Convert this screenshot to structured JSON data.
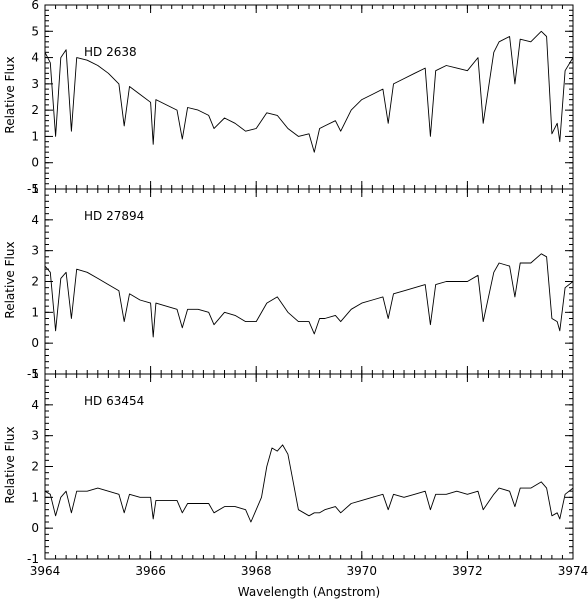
{
  "chart_data": {
    "type": "line",
    "xlabel": "Wavelength (Angstrom)",
    "xlim": [
      3964,
      3974
    ],
    "x_ticks": [
      3964,
      3966,
      3968,
      3970,
      3972,
      3974
    ],
    "panels": [
      {
        "label": "HD 2638",
        "ylabel": "Relative Flux",
        "ylim": [
          -1,
          6
        ],
        "y_ticks": [
          -1,
          0,
          1,
          2,
          3,
          4,
          5,
          6
        ],
        "series": [
          {
            "x": [
              3964.0,
              3964.1,
              3964.2,
              3964.3,
              3964.4,
              3964.5,
              3964.6,
              3964.8,
              3965.0,
              3965.2,
              3965.4,
              3965.5,
              3965.6,
              3965.8,
              3966.0,
              3966.05,
              3966.1,
              3966.3,
              3966.5,
              3966.6,
              3966.7,
              3966.9,
              3967.1,
              3967.2,
              3967.4,
              3967.6,
              3967.8,
              3968.0,
              3968.2,
              3968.4,
              3968.6,
              3968.8,
              3969.0,
              3969.1,
              3969.2,
              3969.3,
              3969.5,
              3969.6,
              3969.8,
              3970.0,
              3970.2,
              3970.4,
              3970.5,
              3970.6,
              3970.8,
              3971.0,
              3971.2,
              3971.3,
              3971.4,
              3971.6,
              3971.8,
              3972.0,
              3972.2,
              3972.3,
              3972.5,
              3972.6,
              3972.8,
              3972.9,
              3973.0,
              3973.2,
              3973.4,
              3973.5,
              3973.6,
              3973.7,
              3973.75,
              3973.85,
              3974.0
            ],
            "y": [
              4.2,
              3.8,
              1.0,
              4.0,
              4.3,
              1.2,
              4.0,
              3.9,
              3.7,
              3.4,
              3.0,
              1.4,
              2.9,
              2.6,
              2.3,
              0.7,
              2.4,
              2.2,
              2.0,
              0.9,
              2.1,
              2.0,
              1.8,
              1.3,
              1.7,
              1.5,
              1.2,
              1.3,
              1.9,
              1.8,
              1.3,
              1.0,
              1.1,
              0.4,
              1.3,
              1.4,
              1.6,
              1.2,
              2.0,
              2.4,
              2.6,
              2.8,
              1.5,
              3.0,
              3.2,
              3.4,
              3.6,
              1.0,
              3.5,
              3.7,
              3.6,
              3.5,
              4.0,
              1.5,
              4.2,
              4.6,
              4.8,
              3.0,
              4.7,
              4.6,
              5.0,
              4.8,
              1.1,
              1.5,
              0.8,
              3.5,
              4.0
            ]
          }
        ]
      },
      {
        "label": "HD 27894",
        "ylabel": "Relative Flux",
        "ylim": [
          -1,
          5
        ],
        "y_ticks": [
          -1,
          0,
          1,
          2,
          3,
          4,
          5
        ],
        "series": [
          {
            "x": [
              3964.0,
              3964.1,
              3964.2,
              3964.3,
              3964.4,
              3964.5,
              3964.6,
              3964.8,
              3965.0,
              3965.2,
              3965.4,
              3965.5,
              3965.6,
              3965.8,
              3966.0,
              3966.05,
              3966.1,
              3966.3,
              3966.5,
              3966.6,
              3966.7,
              3966.9,
              3967.1,
              3967.2,
              3967.4,
              3967.6,
              3967.8,
              3968.0,
              3968.2,
              3968.4,
              3968.6,
              3968.8,
              3969.0,
              3969.1,
              3969.2,
              3969.3,
              3969.5,
              3969.6,
              3969.8,
              3970.0,
              3970.2,
              3970.4,
              3970.5,
              3970.6,
              3970.8,
              3971.0,
              3971.2,
              3971.3,
              3971.4,
              3971.6,
              3971.8,
              3972.0,
              3972.2,
              3972.3,
              3972.5,
              3972.6,
              3972.8,
              3972.9,
              3973.0,
              3973.2,
              3973.4,
              3973.5,
              3973.6,
              3973.7,
              3973.75,
              3973.85,
              3974.0
            ],
            "y": [
              2.5,
              2.3,
              0.4,
              2.1,
              2.3,
              0.8,
              2.4,
              2.3,
              2.1,
              1.9,
              1.7,
              0.7,
              1.6,
              1.4,
              1.3,
              0.2,
              1.3,
              1.2,
              1.1,
              0.5,
              1.1,
              1.1,
              1.0,
              0.6,
              1.0,
              0.9,
              0.7,
              0.7,
              1.3,
              1.5,
              1.0,
              0.7,
              0.7,
              0.3,
              0.8,
              0.8,
              0.9,
              0.7,
              1.1,
              1.3,
              1.4,
              1.5,
              0.8,
              1.6,
              1.7,
              1.8,
              1.9,
              0.6,
              1.9,
              2.0,
              2.0,
              2.0,
              2.2,
              0.7,
              2.3,
              2.6,
              2.5,
              1.5,
              2.6,
              2.6,
              2.9,
              2.8,
              0.8,
              0.7,
              0.4,
              1.8,
              2.0
            ]
          }
        ]
      },
      {
        "label": "HD 63454",
        "ylabel": "Relative Flux",
        "ylim": [
          -1,
          5
        ],
        "y_ticks": [
          -1,
          0,
          1,
          2,
          3,
          4,
          5
        ],
        "series": [
          {
            "x": [
              3964.0,
              3964.1,
              3964.2,
              3964.3,
              3964.4,
              3964.5,
              3964.6,
              3964.8,
              3965.0,
              3965.2,
              3965.4,
              3965.5,
              3965.6,
              3965.8,
              3966.0,
              3966.05,
              3966.1,
              3966.3,
              3966.5,
              3966.6,
              3966.7,
              3966.9,
              3967.1,
              3967.2,
              3967.4,
              3967.6,
              3967.8,
              3967.9,
              3968.0,
              3968.1,
              3968.2,
              3968.3,
              3968.4,
              3968.5,
              3968.6,
              3968.7,
              3968.8,
              3969.0,
              3969.1,
              3969.2,
              3969.3,
              3969.5,
              3969.6,
              3969.8,
              3970.0,
              3970.2,
              3970.4,
              3970.5,
              3970.6,
              3970.8,
              3971.0,
              3971.2,
              3971.3,
              3971.4,
              3971.6,
              3971.8,
              3972.0,
              3972.2,
              3972.3,
              3972.5,
              3972.6,
              3972.8,
              3972.9,
              3973.0,
              3973.2,
              3973.4,
              3973.5,
              3973.6,
              3973.7,
              3973.75,
              3973.85,
              3974.0
            ],
            "y": [
              1.2,
              1.1,
              0.4,
              1.0,
              1.2,
              0.5,
              1.2,
              1.2,
              1.3,
              1.2,
              1.1,
              0.5,
              1.1,
              1.0,
              1.0,
              0.3,
              0.9,
              0.9,
              0.9,
              0.5,
              0.8,
              0.8,
              0.8,
              0.5,
              0.7,
              0.7,
              0.6,
              0.2,
              0.6,
              1.0,
              2.0,
              2.6,
              2.5,
              2.7,
              2.4,
              1.5,
              0.6,
              0.4,
              0.5,
              0.5,
              0.6,
              0.7,
              0.5,
              0.8,
              0.9,
              1.0,
              1.1,
              0.6,
              1.1,
              1.0,
              1.1,
              1.2,
              0.6,
              1.1,
              1.1,
              1.2,
              1.1,
              1.2,
              0.6,
              1.1,
              1.3,
              1.2,
              0.7,
              1.3,
              1.3,
              1.5,
              1.3,
              0.4,
              0.5,
              0.3,
              1.1,
              1.3
            ]
          }
        ]
      }
    ]
  }
}
